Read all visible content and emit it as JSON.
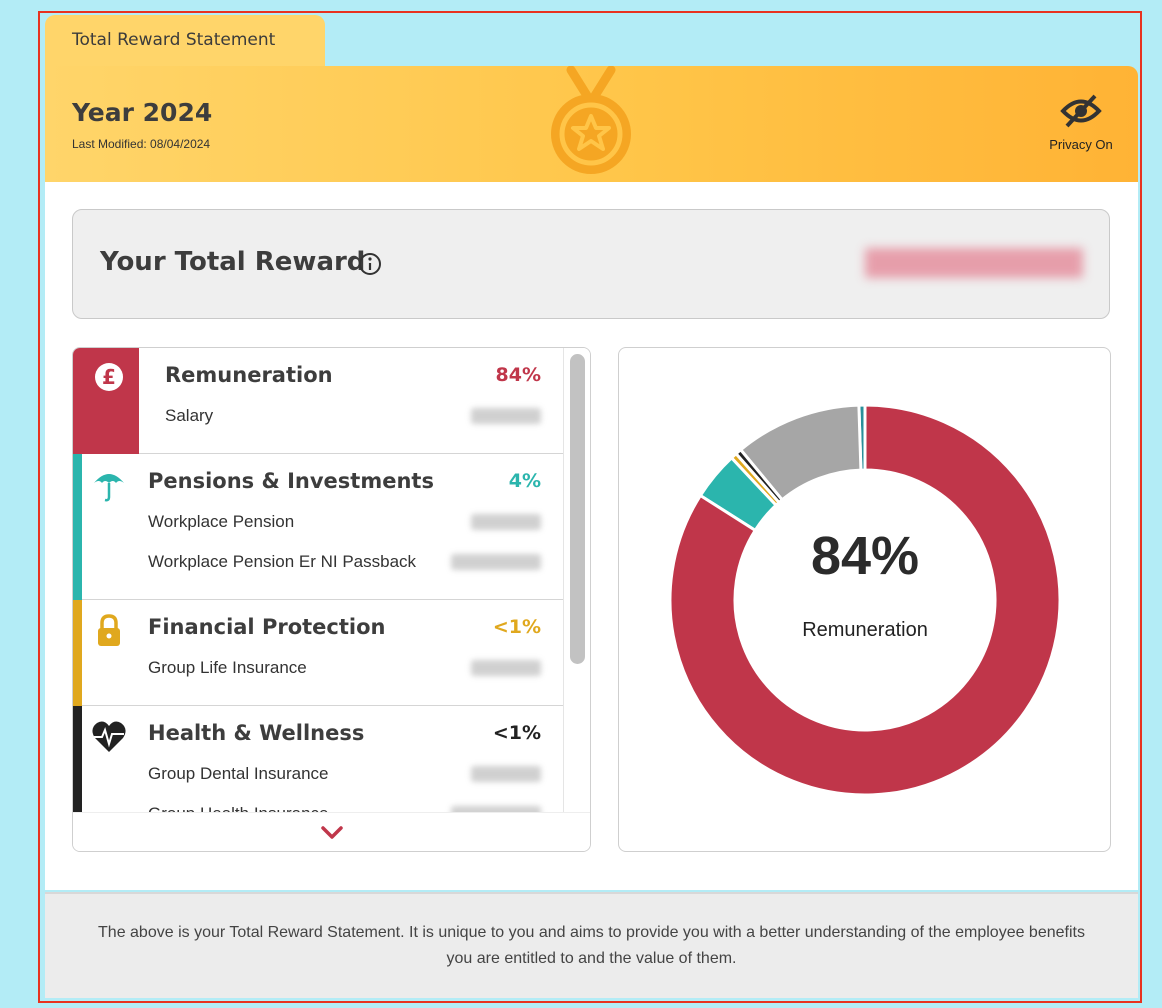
{
  "tab": "Total Reward Statement",
  "header": {
    "title": "Year 2024",
    "subtitle": "Last Modified: 08/04/2024",
    "privacy": "Privacy On"
  },
  "total": {
    "label": "Your Total Reward"
  },
  "sections": [
    {
      "name": "Remuneration",
      "percent": "84%",
      "color": "#c0364a",
      "items": [
        "Salary"
      ]
    },
    {
      "name": "Pensions & Investments",
      "percent": "4%",
      "color": "#2bb5ad",
      "items": [
        "Workplace Pension",
        "Workplace Pension Er NI Passback"
      ]
    },
    {
      "name": "Financial Protection",
      "percent": "<1%",
      "color": "#e0a81e",
      "items": [
        "Group Life Insurance"
      ]
    },
    {
      "name": "Health & Wellness",
      "percent": "<1%",
      "color": "#222222",
      "items": [
        "Group Dental Insurance",
        "Group Health Insurance"
      ]
    }
  ],
  "chart_data": {
    "type": "donut",
    "center_value": "84%",
    "center_label": "Remuneration",
    "values": [
      84,
      4,
      0.5,
      0.5,
      10.5,
      0.5
    ],
    "colors": [
      "#c0364a",
      "#2bb5ad",
      "#e0a81e",
      "#222222",
      "#a6a6a6",
      "#2a8f9a"
    ]
  },
  "footer": "The above is your Total Reward Statement. It is unique to you and aims to provide you with a better understanding of the employee benefits you are entitled to and the value of them."
}
